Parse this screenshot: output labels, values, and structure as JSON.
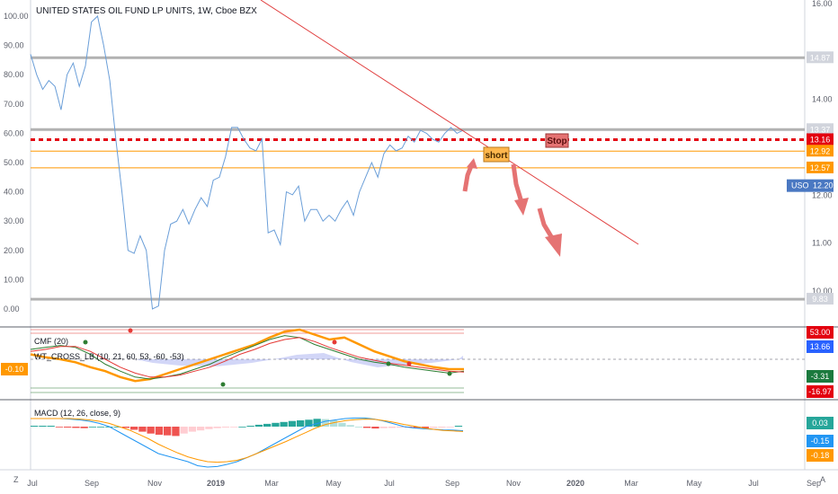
{
  "header": {
    "title": "UNITED STATES OIL FUND LP UNITS, 1W, Cboe BZX"
  },
  "chart_data": [
    {
      "type": "line",
      "name": "main-price-panel",
      "title": "UNITED STATES OIL FUND LP UNITS, 1W, Cboe BZX",
      "left_axis": {
        "ticks": [
          "100.00",
          "90.00",
          "80.00",
          "70.00",
          "60.00",
          "50.00",
          "40.00",
          "30.00",
          "20.00",
          "10.00",
          "0.00"
        ],
        "ylim": [
          0,
          100
        ]
      },
      "right_axis": {
        "ticks": [
          "16.00",
          "14.00",
          "12.00",
          "11.00",
          "10.00"
        ],
        "ylim": [
          9.5,
          16.1
        ]
      },
      "series": [
        {
          "name": "",
          "color": "#6a9ed8",
          "x": [
            0,
            1,
            2,
            3,
            4,
            5,
            6,
            7,
            8,
            9,
            10,
            11,
            12,
            13,
            14,
            15,
            16,
            17,
            18,
            19,
            20,
            21,
            22,
            23,
            24,
            25,
            26,
            27,
            28,
            29,
            30,
            31,
            32,
            33,
            34,
            35,
            36,
            37,
            38,
            39,
            40,
            41,
            42,
            43,
            44,
            45,
            46,
            47,
            48,
            49,
            50,
            51,
            52,
            53,
            54,
            55,
            56,
            57,
            58,
            59,
            60,
            61,
            62,
            63,
            64,
            65,
            66,
            67,
            68,
            69,
            70,
            71
          ],
          "values": [
            87,
            80,
            75,
            78,
            76,
            68,
            80,
            84,
            76,
            83,
            98,
            100,
            90,
            78,
            58,
            40,
            20,
            19,
            25,
            20,
            0,
            1,
            20,
            29,
            30,
            34,
            29,
            34,
            38,
            35,
            44,
            45,
            52,
            62,
            62,
            58,
            55,
            54,
            58,
            26,
            27,
            22,
            40,
            39,
            42,
            30,
            34,
            34,
            30,
            32,
            30,
            34,
            37,
            32,
            40,
            45,
            50,
            45,
            53,
            56,
            54,
            55,
            59,
            57,
            61,
            60,
            58,
            57,
            60,
            62,
            60,
            61
          ]
        },
        {
          "name": "trendline",
          "color": "#e03c3c",
          "x": [
            38,
            100
          ],
          "values": [
            16.7,
            11.02
          ]
        }
      ],
      "horizontal_lines": [
        {
          "value": 14.87,
          "label": "14.87",
          "color": "#b2b2b2"
        },
        {
          "value": 13.37,
          "label": "13.37",
          "color": "#b2b2b2"
        },
        {
          "value": 13.16,
          "label": "13.16",
          "color": "#e3000f",
          "style": "dashed"
        },
        {
          "value": 12.92,
          "label": "12.92",
          "color": "#ff9800"
        },
        {
          "value": 12.57,
          "label": "12.57",
          "color": "#ff9800"
        },
        {
          "value": 9.83,
          "label": "9.83",
          "color": "#b2b2b2"
        }
      ],
      "annotations": [
        {
          "text": "short",
          "bg": "#ffb74d"
        },
        {
          "text": "Stop",
          "bg": "#e57373"
        }
      ],
      "price_badge": {
        "symbol": "USO",
        "value": "12.20",
        "color": "#4a78c2"
      }
    },
    {
      "type": "line",
      "name": "oscillator-panel",
      "legend": [
        "CMF (20)",
        "WT_CROSS_LB (10, 21, 60, 53, -60, -53)"
      ],
      "left_badge": "-0.10",
      "right_badges": [
        {
          "value": "53.00",
          "color": "#e3000f"
        },
        {
          "value": "13.66",
          "color": "#2962ff"
        },
        {
          "value": "0.00",
          "color": "#ffffff"
        },
        {
          "value": "-3.31",
          "color": "#1b7a3e"
        },
        {
          "value": "-16.97",
          "color": "#e3000f"
        }
      ],
      "series": [
        {
          "name": "CMF (20)",
          "color": "#ff9800",
          "values": [
            0.05,
            0.02,
            0.0,
            -0.03,
            -0.08,
            -0.12,
            -0.18,
            -0.22,
            -0.2,
            -0.15,
            -0.1,
            -0.05,
            0.0,
            0.05,
            0.1,
            0.15,
            0.22,
            0.28,
            0.3,
            0.25,
            0.2,
            0.22,
            0.15,
            0.08,
            0.03,
            -0.02,
            -0.05,
            -0.08,
            -0.1,
            -0.1
          ]
        },
        {
          "name": "WT1",
          "color": "#2e7d32",
          "values": [
            0.1,
            0.12,
            0.14,
            0.12,
            0.05,
            -0.05,
            -0.12,
            -0.18,
            -0.2,
            -0.18,
            -0.15,
            -0.1,
            -0.05,
            0.02,
            0.08,
            0.14,
            0.2,
            0.24,
            0.22,
            0.15,
            0.1,
            0.05,
            0.0,
            -0.03,
            -0.05,
            -0.08,
            -0.1,
            -0.12,
            -0.14,
            -0.12
          ]
        },
        {
          "name": "WT2",
          "color": "#e53935",
          "values": [
            0.08,
            0.1,
            0.13,
            0.13,
            0.08,
            0.0,
            -0.08,
            -0.14,
            -0.18,
            -0.18,
            -0.16,
            -0.12,
            -0.08,
            -0.02,
            0.05,
            0.1,
            0.16,
            0.2,
            0.22,
            0.18,
            0.12,
            0.07,
            0.02,
            -0.01,
            -0.04,
            -0.06,
            -0.08,
            -0.1,
            -0.12,
            -0.13
          ]
        }
      ]
    },
    {
      "type": "bar",
      "name": "macd-panel",
      "legend": [
        "MACD (12, 26, close, 9)"
      ],
      "right_badges": [
        {
          "value": "0.03",
          "color": "#26a69a"
        },
        {
          "value": "-0.15",
          "color": "#2196f3"
        },
        {
          "value": "-0.18",
          "color": "#ff9800"
        }
      ],
      "histogram": [
        0.03,
        0.03,
        0.03,
        -0.02,
        -0.03,
        -0.04,
        -0.05,
        0.0,
        0.0,
        0.0,
        0.0,
        -0.04,
        -0.1,
        -0.16,
        -0.22,
        -0.26,
        -0.28,
        -0.3,
        -0.22,
        -0.16,
        -0.12,
        -0.08,
        -0.05,
        -0.03,
        -0.02,
        0.0,
        0.03,
        0.06,
        0.09,
        0.12,
        0.15,
        0.18,
        0.2,
        0.22,
        0.25,
        0.24,
        0.2,
        0.12,
        0.05,
        0.0,
        -0.04,
        -0.06,
        -0.05,
        -0.04,
        -0.03,
        -0.03,
        -0.04,
        -0.05,
        -0.04,
        -0.03,
        -0.02,
        0.03
      ],
      "series": [
        {
          "name": "MACD",
          "color": "#2196f3",
          "values": [
            0.3,
            0.3,
            0.3,
            0.3,
            0.28,
            0.25,
            0.2,
            0.12,
            0.0,
            -0.2,
            -0.4,
            -0.6,
            -0.8,
            -1.0,
            -1.1,
            -1.2,
            -1.3,
            -1.45,
            -1.5,
            -1.48,
            -1.4,
            -1.3,
            -1.15,
            -1.0,
            -0.8,
            -0.6,
            -0.4,
            -0.2,
            0.0,
            0.1,
            0.2,
            0.25,
            0.3,
            0.32,
            0.32,
            0.28,
            0.2,
            0.1,
            0.0,
            -0.05,
            -0.08,
            -0.1,
            -0.12,
            -0.13,
            -0.15
          ]
        },
        {
          "name": "Signal",
          "color": "#ff9800",
          "values": [
            0.3,
            0.3,
            0.3,
            0.3,
            0.3,
            0.28,
            0.25,
            0.2,
            0.12,
            0.0,
            -0.12,
            -0.28,
            -0.45,
            -0.65,
            -0.82,
            -0.98,
            -1.12,
            -1.22,
            -1.3,
            -1.32,
            -1.3,
            -1.25,
            -1.15,
            -1.0,
            -0.85,
            -0.7,
            -0.55,
            -0.38,
            -0.22,
            -0.05,
            0.08,
            0.16,
            0.22,
            0.26,
            0.28,
            0.27,
            0.22,
            0.16,
            0.08,
            0.02,
            -0.05,
            -0.1,
            -0.14,
            -0.16,
            -0.18
          ]
        }
      ]
    }
  ],
  "time_axis": {
    "labels": [
      "Jul",
      "Sep",
      "Nov",
      "2019",
      "Mar",
      "May",
      "Jul",
      "Sep",
      "Nov",
      "2020",
      "Mar",
      "May",
      "Jul",
      "Sep"
    ]
  },
  "corner": {
    "left": "Z",
    "right": "A"
  }
}
